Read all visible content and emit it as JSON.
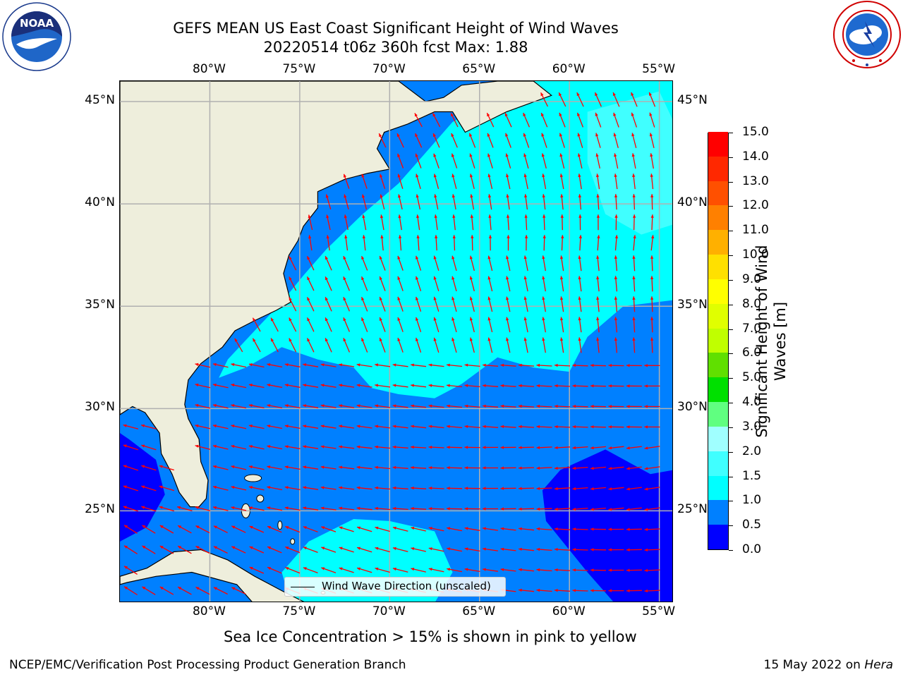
{
  "header": {
    "title_line1": "GEFS MEAN US East Coast Significant Height of Wind Waves",
    "title_line2": "20220514 t06z 360h fcst   Max: 1.88"
  },
  "logos": {
    "left": {
      "icon": "noaa-logo-icon",
      "text": "NOAA",
      "ring_text": "NATIONAL OCEANIC AND ATMOSPHERIC ADMINISTRATION · U.S. DEPARTMENT OF COMMERCE"
    },
    "right": {
      "icon": "nws-logo-icon",
      "ring_text": "NATIONAL WEATHER SERVICE"
    }
  },
  "map": {
    "lon_labels": [
      "80°W",
      "75°W",
      "70°W",
      "65°W",
      "60°W",
      "55°W"
    ],
    "lat_labels": [
      "45°N",
      "40°N",
      "35°N",
      "30°N",
      "25°N"
    ],
    "lon_values": [
      -80,
      -75,
      -70,
      -65,
      -60,
      -55
    ],
    "lat_values": [
      45,
      40,
      35,
      30,
      25
    ],
    "extent": {
      "lon": [
        -85,
        -54.2
      ],
      "lat": [
        20.5,
        46
      ]
    },
    "legend_label": "Wind Wave Direction (unscaled)",
    "colors": {
      "land": "#eeeedc",
      "arrow": "#ff0000",
      "grid": "#b0b0b0",
      "coast": "#000000"
    }
  },
  "colorbar": {
    "label": "Significant Height of Wind Waves [m]",
    "ticks": [
      "0.0",
      "0.5",
      "1.0",
      "1.5",
      "2.0",
      "3.0",
      "4.0",
      "5.0",
      "6.0",
      "7.0",
      "8.0",
      "9.0",
      "10.0",
      "11.0",
      "12.0",
      "13.0",
      "14.0",
      "15.0"
    ],
    "colors": [
      "#0000ff",
      "#0080ff",
      "#00ffff",
      "#40ffff",
      "#a0ffff",
      "#60ff80",
      "#00e000",
      "#60e000",
      "#c0ff00",
      "#e0ff00",
      "#ffff00",
      "#ffe000",
      "#ffb000",
      "#ff8000",
      "#ff5000",
      "#ff2800",
      "#ff0000"
    ]
  },
  "caption": "Sea Ice Concentration > 15% is shown in pink to yellow",
  "footer": {
    "left": "NCEP/EMC/Verification Post Processing Product Generation Branch",
    "right_date": "15 May 2022 on ",
    "right_host": "Hera"
  }
}
